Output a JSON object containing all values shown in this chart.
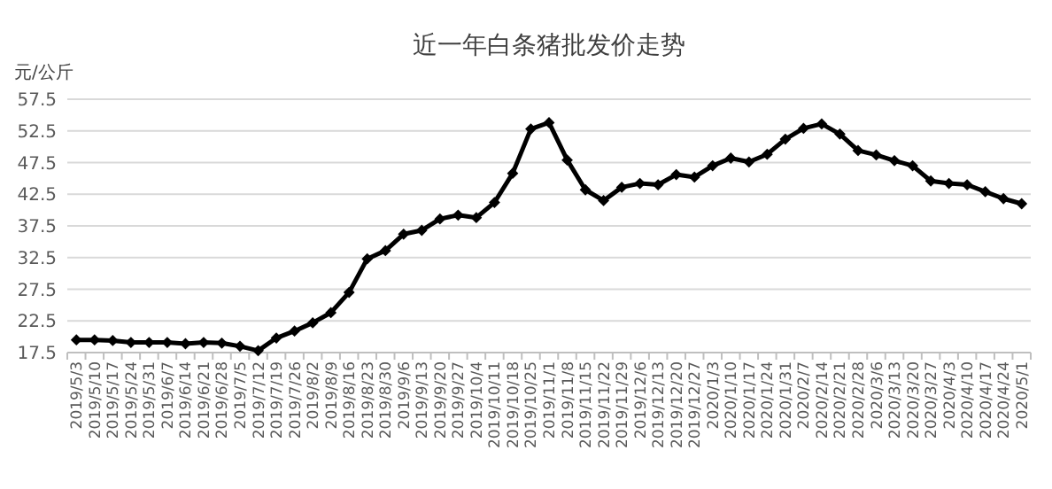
{
  "chart_data": {
    "type": "line",
    "title": "近一年白条猪批发价走势",
    "ylabel": "元/公斤",
    "categories": [
      "2019/5/3",
      "2019/5/10",
      "2019/5/17",
      "2019/5/24",
      "2019/5/31",
      "2019/6/7",
      "2019/6/14",
      "2019/6/21",
      "2019/6/28",
      "2019/7/5",
      "2019/7/12",
      "2019/7/19",
      "2019/7/26",
      "2019/8/2",
      "2019/8/9",
      "2019/8/16",
      "2019/8/23",
      "2019/8/30",
      "2019/9/6",
      "2019/9/13",
      "2019/9/20",
      "2019/9/27",
      "2019/10/4",
      "2019/10/11",
      "2019/10/18",
      "2019/10/25",
      "2019/11/1",
      "2019/11/8",
      "2019/11/15",
      "2019/11/22",
      "2019/11/29",
      "2019/12/6",
      "2019/12/13",
      "2019/12/20",
      "2019/12/27",
      "2020/1/3",
      "2020/1/10",
      "2020/1/17",
      "2020/1/24",
      "2020/1/31",
      "2020/2/7",
      "2020/2/14",
      "2020/2/21",
      "2020/2/28",
      "2020/3/6",
      "2020/3/13",
      "2020/3/20",
      "2020/3/27",
      "2020/4/3",
      "2020/4/10",
      "2020/4/17",
      "2020/4/24",
      "2020/5/1"
    ],
    "series": [
      {
        "color": "#000000",
        "values": [
          19.5,
          19.5,
          19.4,
          19.1,
          19.1,
          19.1,
          18.9,
          19.1,
          19.0,
          18.5,
          17.8,
          19.8,
          20.9,
          22.2,
          23.8,
          27.0,
          32.3,
          33.6,
          36.2,
          36.8,
          38.6,
          39.2,
          38.8,
          41.2,
          45.8,
          52.8,
          53.8,
          47.9,
          43.2,
          41.5,
          43.6,
          44.2,
          44.0,
          45.6,
          45.2,
          47.0,
          48.2,
          47.6,
          48.8,
          51.2,
          52.9,
          53.6,
          52.0,
          49.4,
          48.7,
          47.8,
          47.0,
          44.6,
          44.2,
          44.0,
          42.9,
          41.8,
          41.0
        ]
      }
    ],
    "ylim": [
      17.5,
      57.5
    ],
    "yticks": [
      17.5,
      22.5,
      27.5,
      32.5,
      37.5,
      42.5,
      47.5,
      52.5,
      57.5
    ],
    "grid": "y",
    "marker": "diamond",
    "line_style": "solid"
  }
}
